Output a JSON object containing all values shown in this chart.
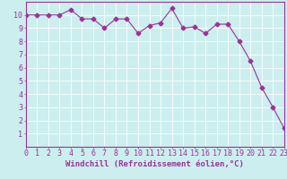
{
  "x": [
    0,
    1,
    2,
    3,
    4,
    5,
    6,
    7,
    8,
    9,
    10,
    11,
    12,
    13,
    14,
    15,
    16,
    17,
    18,
    19,
    20,
    21,
    22,
    23
  ],
  "y": [
    10.0,
    10.0,
    10.0,
    10.0,
    10.4,
    9.7,
    9.7,
    9.0,
    9.7,
    9.7,
    8.6,
    9.2,
    9.4,
    10.5,
    9.0,
    9.1,
    8.6,
    9.3,
    9.3,
    8.0,
    6.5,
    4.5,
    3.0,
    1.4
  ],
  "xlim": [
    0,
    23
  ],
  "ylim": [
    0,
    11
  ],
  "yticks": [
    1,
    2,
    3,
    4,
    5,
    6,
    7,
    8,
    9,
    10
  ],
  "xticks": [
    0,
    1,
    2,
    3,
    4,
    5,
    6,
    7,
    8,
    9,
    10,
    11,
    12,
    13,
    14,
    15,
    16,
    17,
    18,
    19,
    20,
    21,
    22,
    23
  ],
  "xlabel": "Windchill (Refroidissement éolien,°C)",
  "line_color": "#993399",
  "marker": "D",
  "marker_size": 2.5,
  "bg_color": "#cceeee",
  "grid_color": "#ffffff",
  "label_color": "#993399",
  "tick_color": "#993399",
  "spine_color": "#993399",
  "xlabel_fontsize": 6.5,
  "tick_fontsize": 6,
  "line_width": 0.8
}
